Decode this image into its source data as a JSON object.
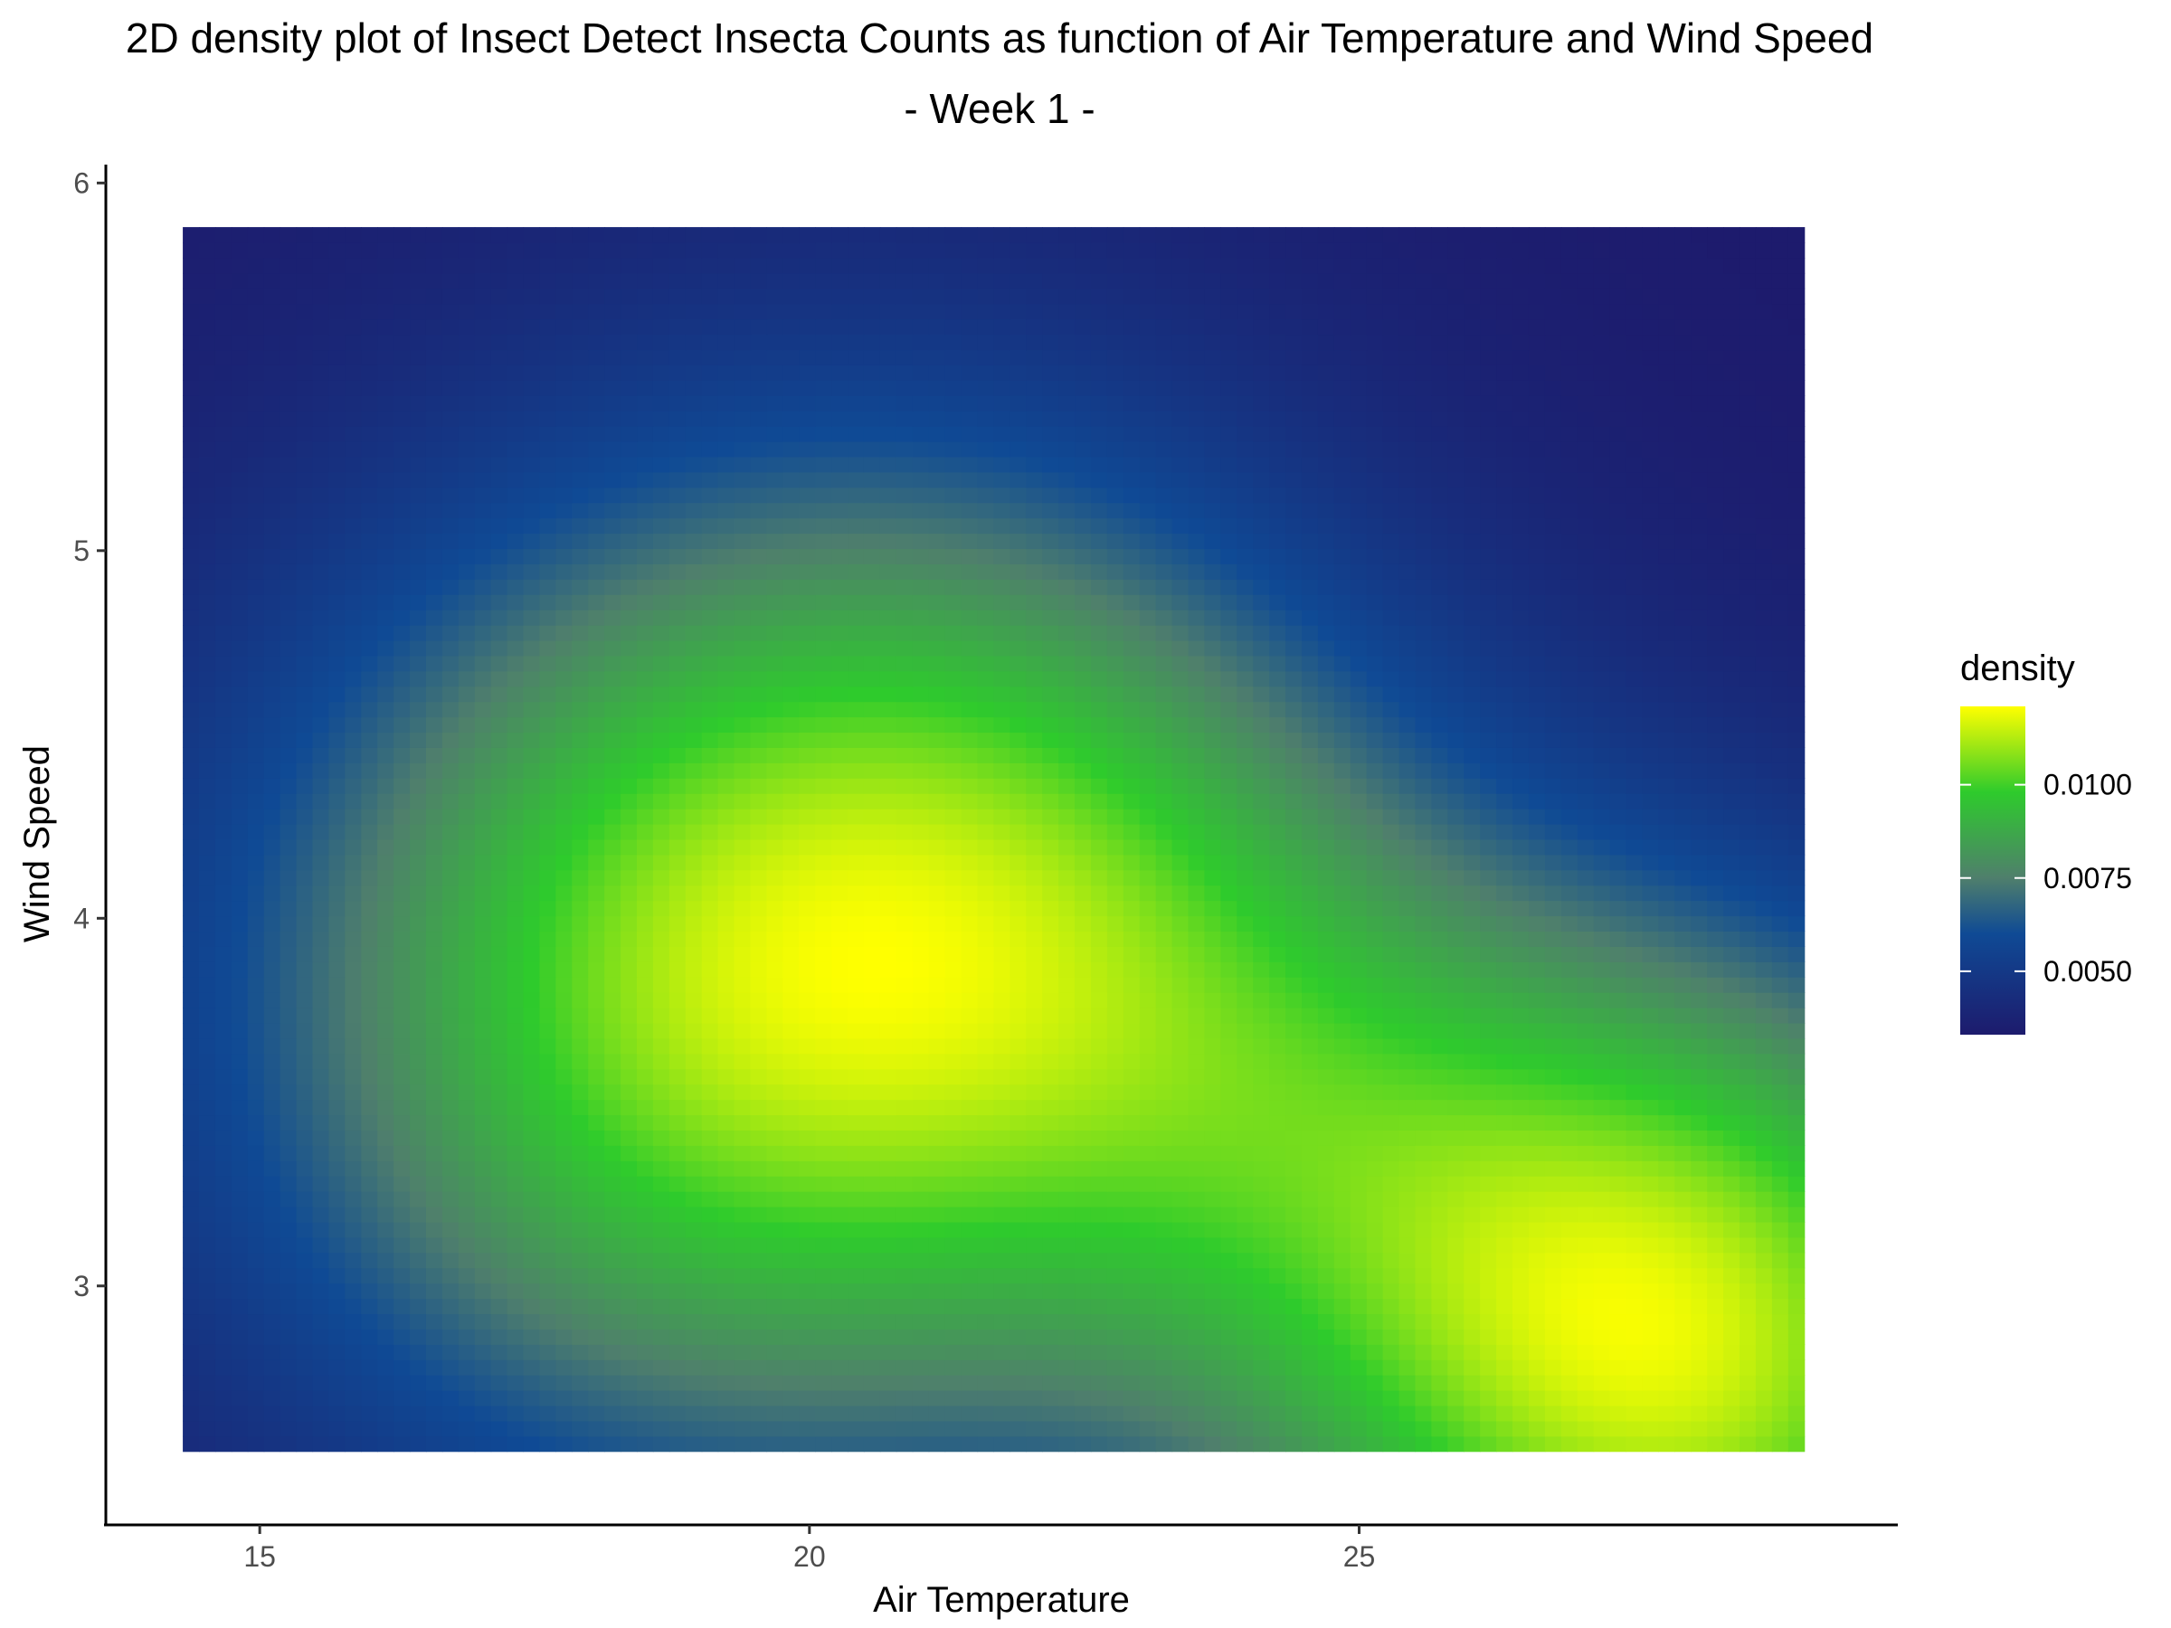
{
  "chart_data": {
    "type": "heatmap",
    "title": "2D density plot of Insect Detect Insecta Counts as function of Air Temperature and Wind Speed",
    "subtitle": "- Week 1 -",
    "xlabel": "Air Temperature",
    "ylabel": "Wind Speed",
    "xlim": [
      13.6,
      29.9
    ],
    "ylim": [
      2.35,
      6.05
    ],
    "x_range_data": [
      14.3,
      29.05
    ],
    "y_range_data": [
      2.55,
      5.88
    ],
    "x_ticks": [
      15,
      20,
      25
    ],
    "y_ticks": [
      3,
      4,
      5,
      6
    ],
    "grid": false,
    "legend": {
      "title": "density",
      "position": "right",
      "min": 0.0033,
      "max": 0.0121,
      "ticks": [
        0.005,
        0.0075,
        0.01
      ],
      "tick_labels": [
        "0.0050",
        "0.0075",
        "0.0100"
      ]
    },
    "colorscale": [
      {
        "value": 0.0033,
        "color": "#1d1b6d"
      },
      {
        "value": 0.006,
        "color": "#0f4a95"
      },
      {
        "value": 0.0075,
        "color": "#4f7f6c"
      },
      {
        "value": 0.0098,
        "color": "#2ecb2c"
      },
      {
        "value": 0.0121,
        "color": "#ffff00"
      }
    ],
    "density_peaks": [
      {
        "x": 20.0,
        "y": 3.8,
        "density": 0.0121
      },
      {
        "x": 28.0,
        "y": 2.8,
        "density": 0.0121
      }
    ]
  }
}
